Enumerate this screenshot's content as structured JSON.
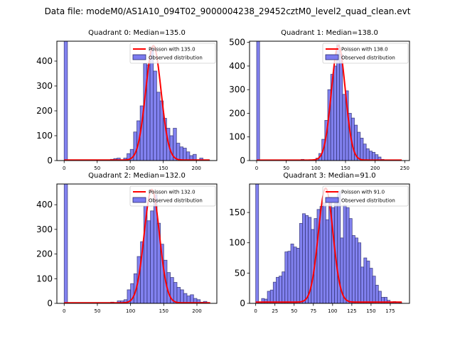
{
  "figure": {
    "suptitle": "Data file: modeM0/AS1A10_094T02_9000004238_29452cztM0_level2_quad_clean.evt"
  },
  "colors": {
    "bar_fill": "#7b7bef",
    "bar_edge": "#2a2a6a",
    "poisson_line": "#ff0000",
    "axes": "#000000"
  },
  "chart_data": [
    {
      "type": "bar",
      "title": "Quadrant 0: Median=135.0",
      "xlabel": "",
      "ylabel": "",
      "xlim": [
        -11,
        231
      ],
      "ylim": [
        0,
        480
      ],
      "xticks": [
        0,
        50,
        100,
        150,
        200
      ],
      "yticks": [
        0,
        100,
        200,
        300,
        400
      ],
      "legend": {
        "position": "top-right",
        "entries": [
          "Poisson with 135.0",
          "Observed distribution"
        ]
      },
      "bin_width": 5,
      "bin_starts": [
        0,
        5,
        10,
        15,
        20,
        25,
        30,
        35,
        40,
        45,
        50,
        55,
        60,
        65,
        70,
        75,
        80,
        85,
        90,
        95,
        100,
        105,
        110,
        115,
        120,
        125,
        130,
        135,
        140,
        145,
        150,
        155,
        160,
        165,
        170,
        175,
        180,
        185,
        190,
        195,
        200,
        205,
        210,
        215
      ],
      "values": [
        480,
        0,
        0,
        0,
        0,
        0,
        0,
        0,
        0,
        0,
        0,
        0,
        0,
        0,
        5,
        8,
        10,
        0,
        10,
        28,
        45,
        115,
        160,
        220,
        390,
        385,
        450,
        360,
        275,
        240,
        170,
        130,
        100,
        130,
        70,
        55,
        50,
        35,
        20,
        25,
        0,
        10,
        0,
        3
      ],
      "poisson_mean": 135.0,
      "poisson_peak": 460
    },
    {
      "type": "bar",
      "title": "Quadrant 1: Median=138.0",
      "xlabel": "",
      "ylabel": "",
      "xlim": [
        -12,
        258
      ],
      "ylim": [
        0,
        505
      ],
      "xticks": [
        0,
        50,
        100,
        150,
        200,
        250
      ],
      "yticks": [
        0,
        100,
        200,
        300,
        400,
        500
      ],
      "legend": {
        "position": "top-right",
        "entries": [
          "Poisson with 138.0",
          "Observed distribution"
        ]
      },
      "bin_width": 5,
      "bin_starts": [
        0,
        5,
        10,
        15,
        20,
        25,
        30,
        35,
        40,
        45,
        50,
        55,
        60,
        65,
        70,
        75,
        80,
        85,
        90,
        95,
        100,
        105,
        110,
        115,
        120,
        125,
        130,
        135,
        140,
        145,
        150,
        155,
        160,
        165,
        170,
        175,
        180,
        185,
        190,
        195,
        200,
        205,
        210,
        215,
        220,
        225,
        230,
        235,
        240
      ],
      "values": [
        505,
        0,
        0,
        0,
        0,
        0,
        0,
        0,
        0,
        0,
        0,
        0,
        0,
        0,
        0,
        5,
        0,
        0,
        0,
        0,
        10,
        30,
        90,
        170,
        300,
        365,
        400,
        490,
        450,
        280,
        295,
        200,
        180,
        150,
        120,
        95,
        70,
        50,
        40,
        35,
        25,
        15,
        5,
        0,
        0,
        0,
        0,
        0,
        0
      ],
      "poisson_mean": 138.0,
      "poisson_peak": 485
    },
    {
      "type": "bar",
      "title": "Quadrant 2: Median=132.0",
      "xlabel": "",
      "ylabel": "",
      "xlim": [
        -11,
        230
      ],
      "ylim": [
        0,
        484
      ],
      "xticks": [
        0,
        50,
        100,
        150,
        200
      ],
      "yticks": [
        0,
        100,
        200,
        300,
        400
      ],
      "legend": {
        "position": "top-right",
        "entries": [
          "Poisson with 132.0",
          "Observed distribution"
        ]
      },
      "bin_width": 5,
      "bin_starts": [
        0,
        5,
        10,
        15,
        20,
        25,
        30,
        35,
        40,
        45,
        50,
        55,
        60,
        65,
        70,
        75,
        80,
        85,
        90,
        95,
        100,
        105,
        110,
        115,
        120,
        125,
        130,
        135,
        140,
        145,
        150,
        155,
        160,
        165,
        170,
        175,
        180,
        185,
        190,
        195,
        200,
        205,
        210,
        215
      ],
      "values": [
        484,
        0,
        0,
        0,
        0,
        0,
        0,
        0,
        0,
        0,
        0,
        0,
        0,
        0,
        5,
        0,
        10,
        10,
        15,
        55,
        80,
        120,
        190,
        250,
        395,
        335,
        375,
        440,
        325,
        240,
        175,
        125,
        105,
        85,
        65,
        55,
        40,
        30,
        35,
        20,
        15,
        5,
        8,
        0
      ],
      "poisson_mean": 132.0,
      "poisson_peak": 460
    },
    {
      "type": "bar",
      "title": "Quadrant 3: Median=91.0",
      "xlabel": "",
      "ylabel": "",
      "xlim": [
        -8,
        200
      ],
      "ylim": [
        0,
        197
      ],
      "xticks": [
        0,
        25,
        50,
        75,
        100,
        125,
        150,
        175
      ],
      "yticks": [
        0,
        50,
        100,
        150
      ],
      "legend": {
        "position": "top-right",
        "entries": [
          "Poisson with 91.0",
          "Observed distribution"
        ]
      },
      "bin_width": 3.8,
      "bin_starts": [
        0,
        3.8,
        7.6,
        11.4,
        15.2,
        19,
        22.8,
        26.6,
        30.4,
        34.2,
        38,
        41.8,
        45.6,
        49.4,
        53.2,
        57,
        60.8,
        64.6,
        68.4,
        72.2,
        76,
        79.8,
        83.6,
        87.4,
        91.2,
        95,
        98.8,
        102.6,
        106.4,
        110.2,
        114,
        117.8,
        121.6,
        125.4,
        129.2,
        133,
        136.8,
        140.6,
        144.4,
        148.2,
        152,
        155.8,
        159.6,
        163.4,
        167.2,
        171,
        174.8,
        178.6,
        182.4,
        186.2
      ],
      "values": [
        197,
        2,
        8,
        7,
        20,
        22,
        35,
        43,
        45,
        52,
        85,
        86,
        98,
        93,
        91,
        132,
        148,
        145,
        142,
        122,
        140,
        155,
        160,
        166,
        138,
        175,
        158,
        165,
        185,
        108,
        162,
        158,
        140,
        112,
        108,
        100,
        60,
        75,
        70,
        58,
        45,
        30,
        20,
        10,
        10,
        5,
        2,
        3,
        2,
        1
      ],
      "poisson_mean": 91.0,
      "poisson_peak": 188
    }
  ]
}
